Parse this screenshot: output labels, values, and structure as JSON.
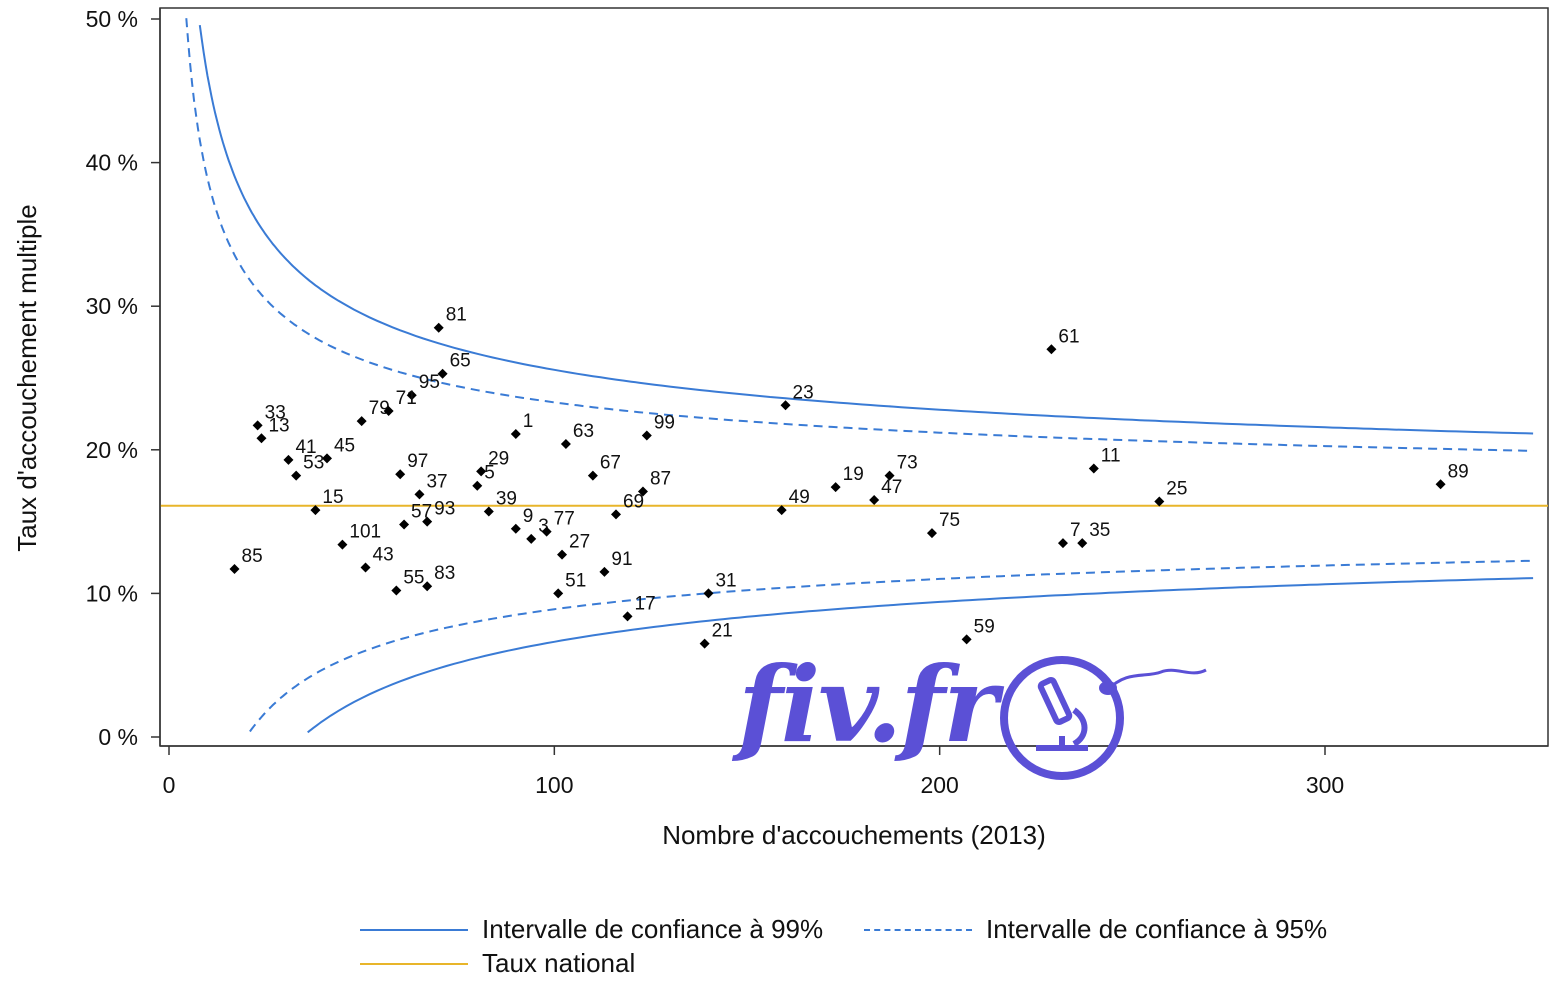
{
  "chart_data": {
    "type": "scatter",
    "title": "",
    "xlabel": "Nombre d'accouchements (2013)",
    "ylabel": "Taux d'accouchement multiple",
    "xlim": [
      0,
      355
    ],
    "ylim": [
      0,
      50
    ],
    "x_ticks": [
      0,
      100,
      200,
      300
    ],
    "x_tick_labels": [
      "0",
      "100",
      "200",
      "300"
    ],
    "y_ticks": [
      0,
      10,
      20,
      30,
      40,
      50
    ],
    "y_tick_labels": [
      "0 %",
      "10 %",
      "20 %",
      "30 %",
      "40 %",
      "50 %"
    ],
    "grid": false,
    "legend_position": "bottom",
    "national_rate": 16.1,
    "colors": {
      "ci99": "#3a7bd5",
      "ci95": "#3a7bd5",
      "national": "#e8b52a",
      "points": "#000000"
    },
    "series": [
      {
        "name": "Intervalle de confiance à 99%",
        "style": "solid",
        "kind": "upper/lower 99% band"
      },
      {
        "name": "Intervalle de confiance à 95%",
        "style": "dashed",
        "kind": "upper/lower 95% band"
      },
      {
        "name": "Taux national",
        "style": "solid",
        "kind": "horizontal line"
      }
    ],
    "points": [
      {
        "label": "81",
        "x": 70,
        "y": 28.5
      },
      {
        "label": "65",
        "x": 71,
        "y": 25.3
      },
      {
        "label": "95",
        "x": 63,
        "y": 23.8
      },
      {
        "label": "79",
        "x": 50,
        "y": 22.0
      },
      {
        "label": "71",
        "x": 57,
        "y": 22.7
      },
      {
        "label": "33",
        "x": 23,
        "y": 21.7
      },
      {
        "label": "13",
        "x": 24,
        "y": 20.8
      },
      {
        "label": "41",
        "x": 31,
        "y": 19.3
      },
      {
        "label": "45",
        "x": 41,
        "y": 19.4
      },
      {
        "label": "53",
        "x": 33,
        "y": 18.2
      },
      {
        "label": "97",
        "x": 60,
        "y": 18.3
      },
      {
        "label": "15",
        "x": 38,
        "y": 15.8
      },
      {
        "label": "57",
        "x": 61,
        "y": 14.8
      },
      {
        "label": "37",
        "x": 65,
        "y": 16.9
      },
      {
        "label": "93",
        "x": 67,
        "y": 15.0
      },
      {
        "label": "101",
        "x": 45,
        "y": 13.4
      },
      {
        "label": "85",
        "x": 17,
        "y": 11.7
      },
      {
        "label": "43",
        "x": 51,
        "y": 11.8
      },
      {
        "label": "55",
        "x": 59,
        "y": 10.2
      },
      {
        "label": "83",
        "x": 67,
        "y": 10.5
      },
      {
        "label": "1",
        "x": 90,
        "y": 21.1
      },
      {
        "label": "29",
        "x": 81,
        "y": 18.5
      },
      {
        "label": "5",
        "x": 80,
        "y": 17.5
      },
      {
        "label": "39",
        "x": 83,
        "y": 15.7
      },
      {
        "label": "9",
        "x": 90,
        "y": 14.5
      },
      {
        "label": "3",
        "x": 94,
        "y": 13.8
      },
      {
        "label": "77",
        "x": 98,
        "y": 14.3
      },
      {
        "label": "27",
        "x": 102,
        "y": 12.7
      },
      {
        "label": "51",
        "x": 101,
        "y": 10.0
      },
      {
        "label": "63",
        "x": 103,
        "y": 20.4
      },
      {
        "label": "67",
        "x": 110,
        "y": 18.2
      },
      {
        "label": "69",
        "x": 116,
        "y": 15.5
      },
      {
        "label": "91",
        "x": 113,
        "y": 11.5
      },
      {
        "label": "17",
        "x": 119,
        "y": 8.4
      },
      {
        "label": "99",
        "x": 124,
        "y": 21.0
      },
      {
        "label": "87",
        "x": 123,
        "y": 17.1
      },
      {
        "label": "31",
        "x": 140,
        "y": 10.0
      },
      {
        "label": "21",
        "x": 139,
        "y": 6.5
      },
      {
        "label": "23",
        "x": 160,
        "y": 23.1
      },
      {
        "label": "49",
        "x": 159,
        "y": 15.8
      },
      {
        "label": "19",
        "x": 173,
        "y": 17.4
      },
      {
        "label": "47",
        "x": 183,
        "y": 16.5
      },
      {
        "label": "73",
        "x": 187,
        "y": 18.2
      },
      {
        "label": "75",
        "x": 198,
        "y": 14.2
      },
      {
        "label": "59",
        "x": 207,
        "y": 6.8
      },
      {
        "label": "61",
        "x": 229,
        "y": 27.0
      },
      {
        "label": "11",
        "x": 240,
        "y": 18.7
      },
      {
        "label": "7",
        "x": 232,
        "y": 13.5
      },
      {
        "label": "35",
        "x": 237,
        "y": 13.5
      },
      {
        "label": "25",
        "x": 257,
        "y": 16.4
      },
      {
        "label": "89",
        "x": 330,
        "y": 17.6
      }
    ]
  },
  "legend": {
    "ci99": "Intervalle de confiance à 99%",
    "ci95": "Intervalle de confiance à 95%",
    "national": "Taux national"
  },
  "watermark": {
    "text": "fiv.fr",
    "icon": "microscope-logo-icon",
    "color": "#5b50d6"
  }
}
